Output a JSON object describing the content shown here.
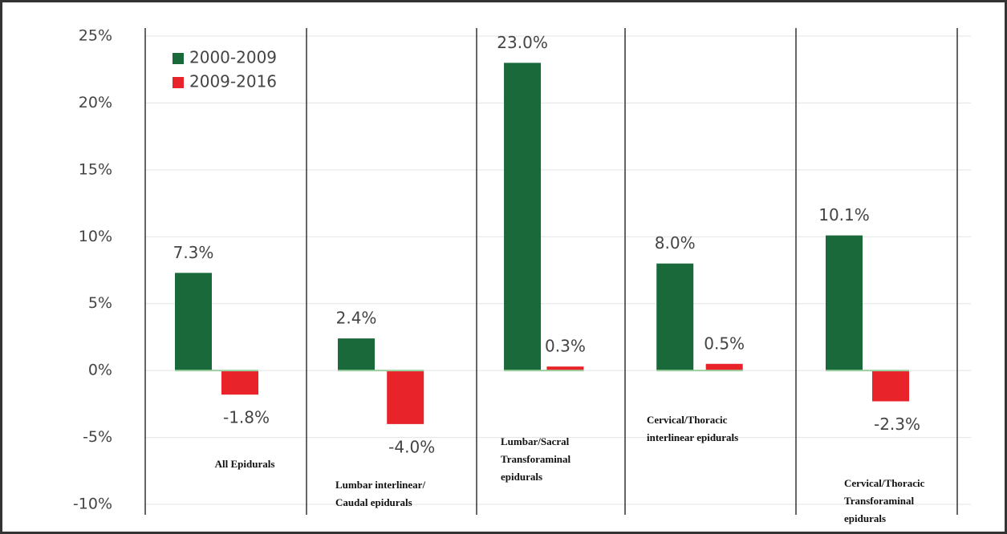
{
  "chart_data": {
    "type": "bar",
    "categories": [
      [
        "All Epidurals"
      ],
      [
        "Lumbar interlinear/",
        "Caudal epidurals"
      ],
      [
        "Lumbar/Sacral",
        "Transforaminal",
        "epidurals"
      ],
      [
        "Cervical/Thoracic",
        "interlinear epidurals"
      ],
      [
        "Cervical/Thoracic",
        "Transforaminal",
        "epidurals"
      ]
    ],
    "series": [
      {
        "name": "2000-2009",
        "color": "#19693a",
        "values": [
          7.3,
          2.4,
          23.0,
          8.0,
          10.1
        ],
        "value_labels": [
          "7.3%",
          "2.4%",
          "23.0%",
          "8.0%",
          "10.1%"
        ]
      },
      {
        "name": "2009-2016",
        "color": "#e8232a",
        "values": [
          -1.8,
          -4.0,
          0.3,
          0.5,
          -2.3
        ],
        "value_labels": [
          "-1.8%",
          "-4.0%",
          "0.3%",
          "0.5%",
          "-2.3%"
        ]
      }
    ],
    "ylim": [
      -10,
      25
    ],
    "yticks": [
      {
        "value": -10,
        "label": "-10%"
      },
      {
        "value": -5,
        "label": "-5%"
      },
      {
        "value": 0,
        "label": "0%"
      },
      {
        "value": 5,
        "label": "5%"
      },
      {
        "value": 10,
        "label": "10%"
      },
      {
        "value": 15,
        "label": "15%"
      },
      {
        "value": 20,
        "label": "20%"
      },
      {
        "value": 25,
        "label": "25%"
      }
    ],
    "grid": true
  }
}
